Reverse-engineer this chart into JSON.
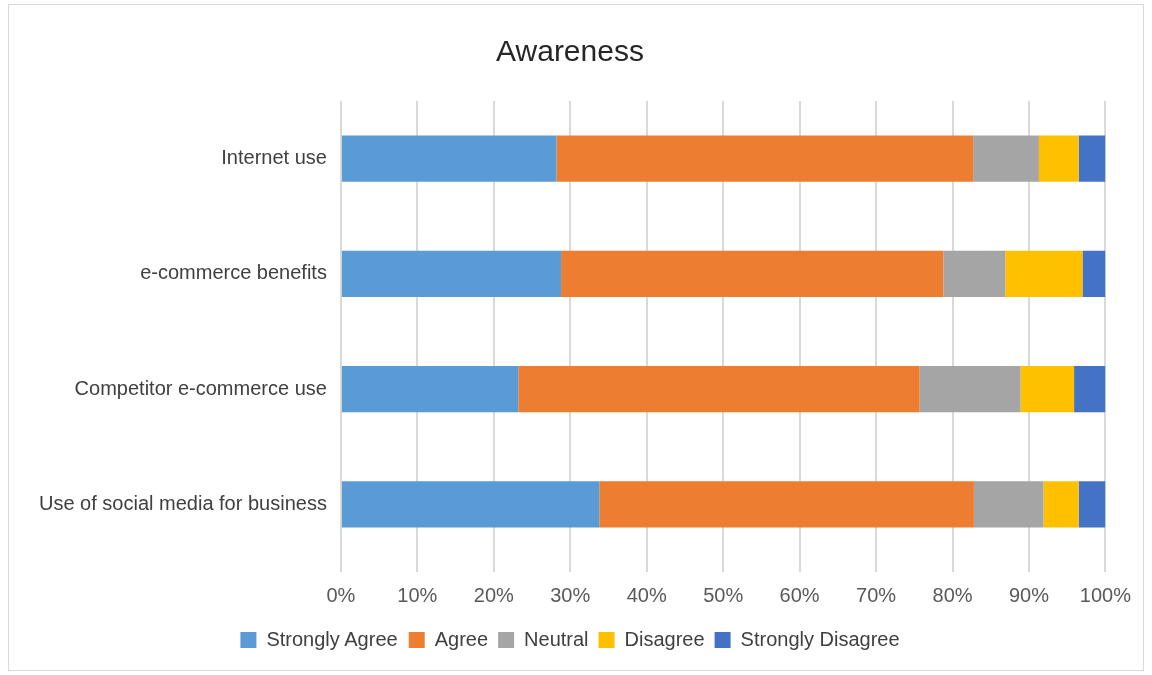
{
  "chart_data": {
    "type": "bar",
    "orientation": "horizontal",
    "stacked": true,
    "title": "Awareness",
    "categories": [
      "Internet use",
      "e-commerce benefits",
      "Competitor e-commerce use",
      "Use of social media for business"
    ],
    "series": [
      {
        "name": "Strongly Agree",
        "color": "#5b9bd5",
        "values": [
          28.2,
          28.8,
          23.2,
          33.8
        ]
      },
      {
        "name": "Agree",
        "color": "#ed7d31",
        "values": [
          54.5,
          50.0,
          52.5,
          49.0
        ]
      },
      {
        "name": "Neutral",
        "color": "#a5a5a5",
        "values": [
          8.6,
          8.1,
          13.2,
          9.1
        ]
      },
      {
        "name": "Disagree",
        "color": "#ffc000",
        "values": [
          5.2,
          10.1,
          7.0,
          4.6
        ]
      },
      {
        "name": "Strongly Disagree",
        "color": "#4472c4",
        "values": [
          3.5,
          3.0,
          4.1,
          3.5
        ]
      }
    ],
    "xlim": [
      0,
      100
    ],
    "xticks": [
      {
        "value": 0,
        "label": "0%"
      },
      {
        "value": 10,
        "label": "10%"
      },
      {
        "value": 20,
        "label": "20%"
      },
      {
        "value": 30,
        "label": "30%"
      },
      {
        "value": 40,
        "label": "40%"
      },
      {
        "value": 50,
        "label": "50%"
      },
      {
        "value": 60,
        "label": "60%"
      },
      {
        "value": 70,
        "label": "70%"
      },
      {
        "value": 80,
        "label": "80%"
      },
      {
        "value": 90,
        "label": "90%"
      },
      {
        "value": 100,
        "label": "100%"
      }
    ],
    "grid": "x",
    "legend": "bottom"
  }
}
